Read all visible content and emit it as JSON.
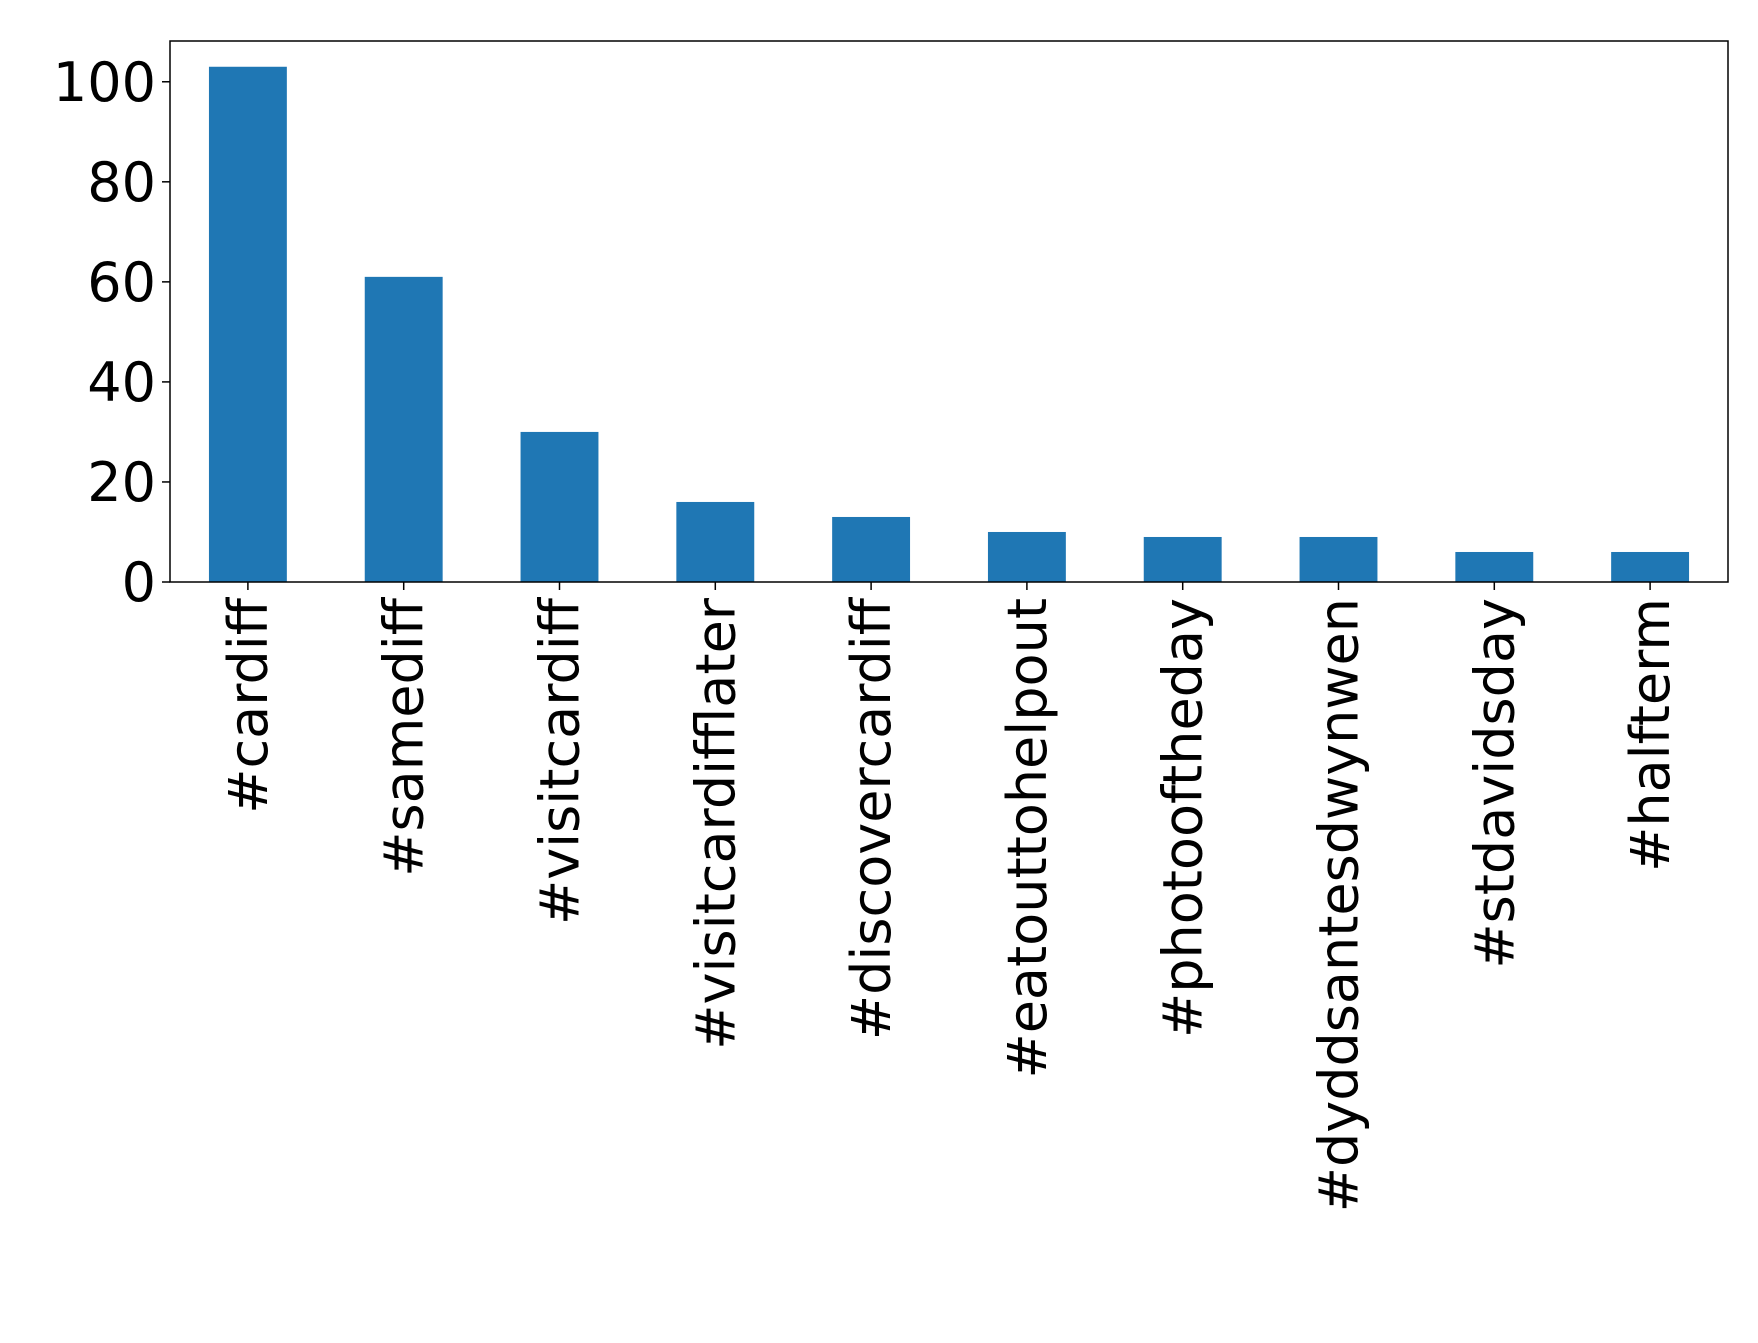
{
  "chart_data": {
    "type": "bar",
    "categories": [
      "#cardiff",
      "#samediff",
      "#visitcardiff",
      "#visitcardifflater",
      "#discovercardiff",
      "#eatouttohelpout",
      "#photooftheday",
      "#dyddsantesdwynwen",
      "#stdavidsday",
      "#halfterm"
    ],
    "values": [
      103,
      61,
      30,
      16,
      13,
      10,
      9,
      9,
      6,
      6
    ],
    "color": "#1f77b4",
    "ylim": [
      0,
      108.15
    ],
    "yticks": [
      0,
      20,
      40,
      60,
      80,
      100
    ],
    "grid": false
  }
}
